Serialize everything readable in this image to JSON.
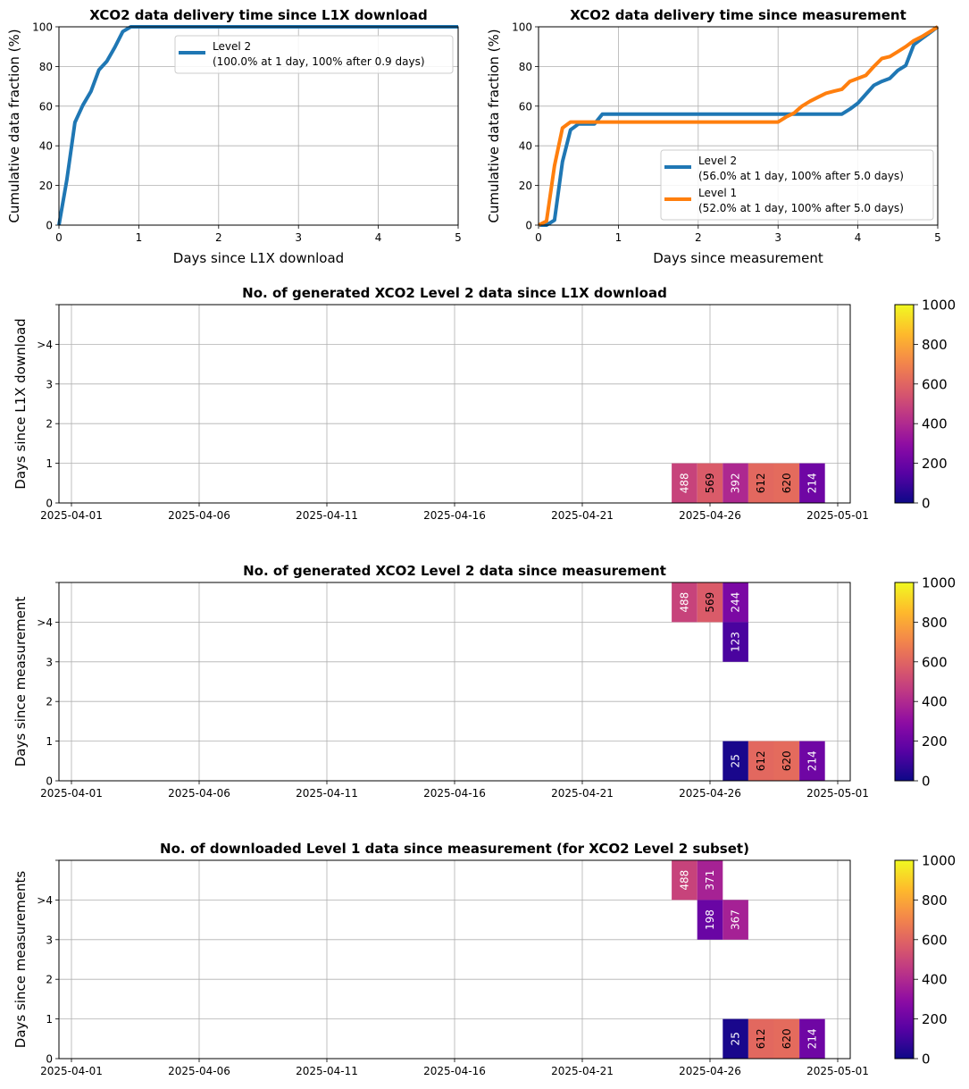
{
  "chart_data": [
    {
      "type": "line",
      "title": "XCO2 data delivery time since L1X download",
      "xlabel": "Days since L1X download",
      "ylabel": "Cumulative data fraction (%)",
      "xlim": [
        0,
        5
      ],
      "ylim": [
        0,
        100
      ],
      "xticks": [
        "0",
        "1",
        "2",
        "3",
        "4",
        "5"
      ],
      "yticks": [
        "0",
        "20",
        "40",
        "60",
        "80",
        "100"
      ],
      "grid": true,
      "legend_position": "upper-right",
      "series": [
        {
          "name": "Level 2",
          "legend_detail": "(100.0% at 1 day, 100% after 0.9 days)",
          "color": "#1f77b4",
          "x": [
            0,
            0.1,
            0.2,
            0.3,
            0.4,
            0.5,
            0.6,
            0.7,
            0.8,
            0.9,
            1.0,
            5.0
          ],
          "y": [
            0,
            23,
            51.8,
            60.5,
            67.4,
            78.2,
            82.6,
            89.7,
            97.6,
            100,
            100,
            100
          ]
        }
      ]
    },
    {
      "type": "line",
      "title": "XCO2 data delivery time since measurement",
      "xlabel": "Days since measurement",
      "ylabel": "Cumulative data fraction (%)",
      "xlim": [
        0,
        5
      ],
      "ylim": [
        0,
        100
      ],
      "xticks": [
        "0",
        "1",
        "2",
        "3",
        "4",
        "5"
      ],
      "yticks": [
        "0",
        "20",
        "40",
        "60",
        "80",
        "100"
      ],
      "grid": true,
      "legend_position": "lower-right",
      "series": [
        {
          "name": "Level 2",
          "legend_detail": "(56.0% at 1 day, 100% after 5.0 days)",
          "color": "#1f77b4",
          "x": [
            0,
            0.1,
            0.2,
            0.3,
            0.4,
            0.5,
            0.6,
            0.7,
            0.8,
            0.9,
            1.0,
            3.8,
            3.9,
            4.0,
            4.1,
            4.2,
            4.3,
            4.4,
            4.5,
            4.6,
            4.7,
            4.8,
            4.9,
            5.0
          ],
          "y": [
            0,
            0,
            2.5,
            32,
            48,
            51,
            51,
            51,
            56,
            56,
            56,
            56,
            58.5,
            61.5,
            66,
            70.5,
            72.5,
            74,
            78,
            80.5,
            91,
            94,
            97,
            100
          ]
        },
        {
          "name": "Level 1",
          "legend_detail": "(52.0% at 1 day, 100% after 5.0 days)",
          "color": "#ff7f0e",
          "x": [
            0,
            0.1,
            0.2,
            0.3,
            0.4,
            0.5,
            1.0,
            3.0,
            3.1,
            3.2,
            3.3,
            3.4,
            3.5,
            3.6,
            3.7,
            3.8,
            3.9,
            4.0,
            4.1,
            4.2,
            4.3,
            4.4,
            4.5,
            4.6,
            4.7,
            4.8,
            4.9,
            5.0
          ],
          "y": [
            0,
            2,
            30,
            49,
            52,
            52,
            52,
            52,
            54.5,
            56.5,
            60,
            62.5,
            64.5,
            66.5,
            67.5,
            68.5,
            72.5,
            74,
            75.5,
            80,
            84,
            85,
            87.5,
            90,
            93,
            95,
            97.5,
            100
          ]
        }
      ]
    },
    {
      "type": "heatmap",
      "title": "No. of generated XCO2 Level 2 data since L1X download",
      "ylabel": "Days since L1X download",
      "xticks": [
        "2025-04-01",
        "2025-04-06",
        "2025-04-11",
        "2025-04-16",
        "2025-04-21",
        "2025-04-26",
        "2025-05-01"
      ],
      "yticks": [
        "0",
        "1",
        "2",
        "3",
        ">4"
      ],
      "colorbar": {
        "min": 0,
        "max": 1000,
        "ticks": [
          "0",
          "200",
          "400",
          "600",
          "800",
          "1000"
        ],
        "colormap": "plasma"
      },
      "cells": [
        {
          "date": "2025-04-25",
          "row": 0,
          "value": 488
        },
        {
          "date": "2025-04-26",
          "row": 0,
          "value": 569
        },
        {
          "date": "2025-04-27",
          "row": 0,
          "value": 392
        },
        {
          "date": "2025-04-28",
          "row": 0,
          "value": 612
        },
        {
          "date": "2025-04-29",
          "row": 0,
          "value": 620
        },
        {
          "date": "2025-04-30",
          "row": 0,
          "value": 214
        }
      ]
    },
    {
      "type": "heatmap",
      "title": "No. of generated XCO2 Level 2 data since measurement",
      "ylabel": "Days since measurement",
      "xticks": [
        "2025-04-01",
        "2025-04-06",
        "2025-04-11",
        "2025-04-16",
        "2025-04-21",
        "2025-04-26",
        "2025-05-01"
      ],
      "yticks": [
        "0",
        "1",
        "2",
        "3",
        ">4"
      ],
      "colorbar": {
        "min": 0,
        "max": 1000,
        "ticks": [
          "0",
          "200",
          "400",
          "600",
          "800",
          "1000"
        ],
        "colormap": "plasma"
      },
      "cells": [
        {
          "date": "2025-04-25",
          "row": 4,
          "value": 488
        },
        {
          "date": "2025-04-26",
          "row": 4,
          "value": 569
        },
        {
          "date": "2025-04-27",
          "row": 4,
          "value": 244
        },
        {
          "date": "2025-04-27",
          "row": 3,
          "value": 123
        },
        {
          "date": "2025-04-27",
          "row": 0,
          "value": 25
        },
        {
          "date": "2025-04-28",
          "row": 0,
          "value": 612
        },
        {
          "date": "2025-04-29",
          "row": 0,
          "value": 620
        },
        {
          "date": "2025-04-30",
          "row": 0,
          "value": 214
        }
      ]
    },
    {
      "type": "heatmap",
      "title": "No. of downloaded Level 1 data since measurement (for XCO2 Level 2 subset)",
      "ylabel": "Days since measurements",
      "xticks": [
        "2025-04-01",
        "2025-04-06",
        "2025-04-11",
        "2025-04-16",
        "2025-04-21",
        "2025-04-26",
        "2025-05-01"
      ],
      "yticks": [
        "0",
        "1",
        "2",
        "3",
        ">4"
      ],
      "colorbar": {
        "min": 0,
        "max": 1000,
        "ticks": [
          "0",
          "200",
          "400",
          "600",
          "800",
          "1000"
        ],
        "colormap": "plasma"
      },
      "cells": [
        {
          "date": "2025-04-25",
          "row": 4,
          "value": 488
        },
        {
          "date": "2025-04-26",
          "row": 4,
          "value": 371
        },
        {
          "date": "2025-04-26",
          "row": 3,
          "value": 198
        },
        {
          "date": "2025-04-27",
          "row": 3,
          "value": 367
        },
        {
          "date": "2025-04-27",
          "row": 0,
          "value": 25
        },
        {
          "date": "2025-04-28",
          "row": 0,
          "value": 612
        },
        {
          "date": "2025-04-29",
          "row": 0,
          "value": 620
        },
        {
          "date": "2025-04-30",
          "row": 0,
          "value": 214
        }
      ]
    }
  ]
}
